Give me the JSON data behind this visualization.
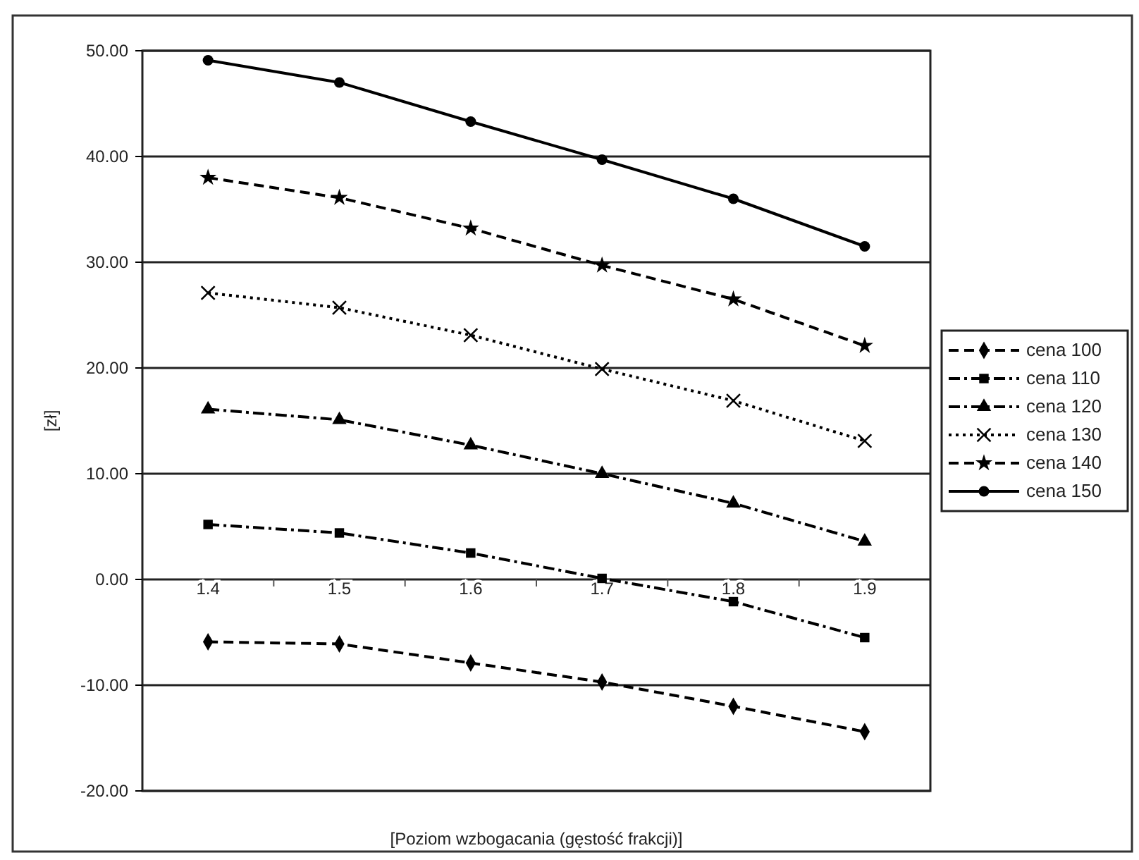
{
  "chart_data": {
    "type": "line",
    "xlabel": "[Poziom wzbogacania (gęstość frakcji)]",
    "ylabel": "[zł]",
    "categories": [
      "1.4",
      "1.5",
      "1.6",
      "1.7",
      "1.8",
      "1.9"
    ],
    "ylim": [
      -20,
      50
    ],
    "yticks": [
      {
        "value": -20,
        "label": "-20.00"
      },
      {
        "value": -10,
        "label": "-10.00"
      },
      {
        "value": 0,
        "label": "0.00"
      },
      {
        "value": 10,
        "label": "10.00"
      },
      {
        "value": 20,
        "label": "20.00"
      },
      {
        "value": 30,
        "label": "30.00"
      },
      {
        "value": 40,
        "label": "40.00"
      },
      {
        "value": 50,
        "label": "50.00"
      }
    ],
    "grid": "y",
    "legend": "right",
    "series": [
      {
        "name": "cena 100",
        "color": "#000000",
        "marker": "diamond",
        "line_style": "dashed",
        "values": [
          -5.9,
          -6.1,
          -7.9,
          -9.7,
          -12.0,
          -14.4
        ]
      },
      {
        "name": "cena 110",
        "color": "#000000",
        "marker": "square",
        "line_style": "dashdot",
        "values": [
          5.2,
          4.4,
          2.5,
          0.1,
          -2.1,
          -5.5
        ]
      },
      {
        "name": "cena 120",
        "color": "#000000",
        "marker": "triangle",
        "line_style": "dashdot",
        "values": [
          16.1,
          15.1,
          12.7,
          10.0,
          7.2,
          3.6
        ]
      },
      {
        "name": "cena 130",
        "color": "#000000",
        "marker": "cross",
        "line_style": "dotted",
        "values": [
          27.1,
          25.7,
          23.1,
          19.9,
          16.9,
          13.1
        ]
      },
      {
        "name": "cena 140",
        "color": "#000000",
        "marker": "star",
        "line_style": "dashed",
        "values": [
          38.0,
          36.1,
          33.2,
          29.7,
          26.5,
          22.1
        ]
      },
      {
        "name": "cena 150",
        "color": "#000000",
        "marker": "circle",
        "line_style": "solid",
        "values": [
          49.1,
          47.0,
          43.3,
          39.7,
          36.0,
          31.5
        ]
      }
    ]
  }
}
